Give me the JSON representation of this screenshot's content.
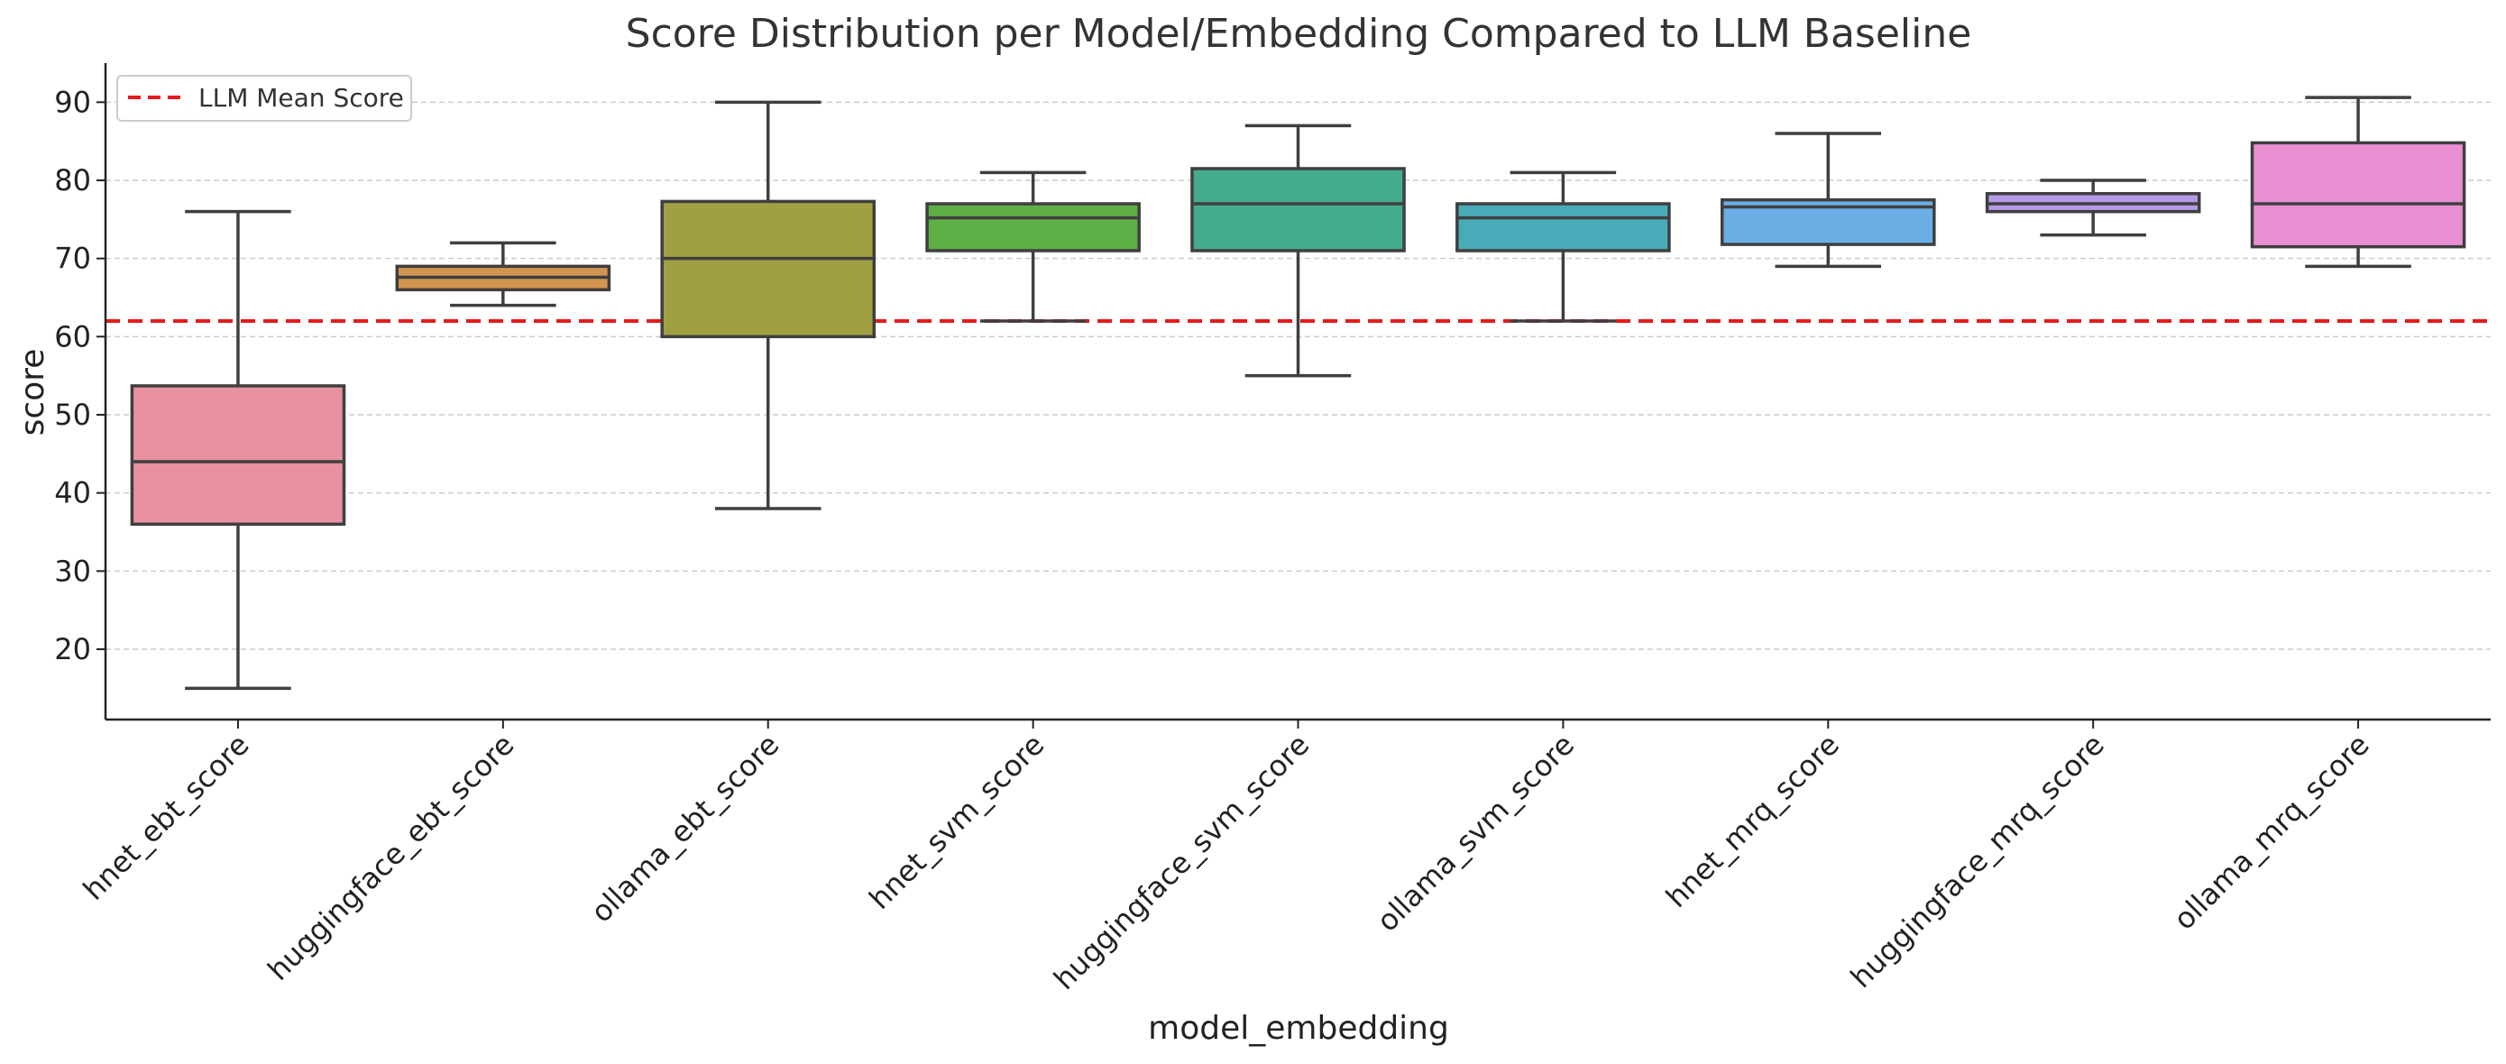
{
  "chart_data": {
    "type": "box",
    "title": "Score Distribution per Model/Embedding Compared to LLM Baseline",
    "xlabel": "model_embedding",
    "ylabel": "score",
    "ylim": [
      11,
      95
    ],
    "yticks": [
      20,
      30,
      40,
      50,
      60,
      70,
      80,
      90
    ],
    "grid": true,
    "legend": {
      "position": "top-left",
      "entries": [
        "LLM Mean Score"
      ]
    },
    "baseline": {
      "name": "LLM Mean Score",
      "value": 62,
      "color": "#e41a1c"
    },
    "categories": [
      "hnet_ebt_score",
      "huggingface_ebt_score",
      "ollama_ebt_score",
      "hnet_svm_score",
      "huggingface_svm_score",
      "ollama_svm_score",
      "hnet_mrq_score",
      "huggingface_mrq_score",
      "ollama_mrq_score"
    ],
    "boxes": [
      {
        "name": "hnet_ebt_score",
        "min": 15,
        "q1": 36,
        "median": 44,
        "q3": 53.7,
        "max": 76,
        "color": "#e8919f"
      },
      {
        "name": "huggingface_ebt_score",
        "min": 64,
        "q1": 66,
        "median": 67.6,
        "q3": 69,
        "max": 72,
        "color": "#d1954f"
      },
      {
        "name": "ollama_ebt_score",
        "min": 38,
        "q1": 60,
        "median": 70,
        "q3": 77.3,
        "max": 90,
        "color": "#a0a043"
      },
      {
        "name": "hnet_svm_score",
        "min": 62,
        "q1": 71,
        "median": 75.2,
        "q3": 77,
        "max": 81,
        "color": "#5eaf45"
      },
      {
        "name": "huggingface_svm_score",
        "min": 55,
        "q1": 71,
        "median": 77,
        "q3": 81.5,
        "max": 87,
        "color": "#45ab8e"
      },
      {
        "name": "ollama_svm_score",
        "min": 62,
        "q1": 71,
        "median": 75.2,
        "q3": 77,
        "max": 81,
        "color": "#4aabb8"
      },
      {
        "name": "hnet_mrq_score",
        "min": 69,
        "q1": 71.8,
        "median": 76.6,
        "q3": 77.5,
        "max": 86,
        "color": "#6aaee6"
      },
      {
        "name": "huggingface_mrq_score",
        "min": 73,
        "q1": 76,
        "median": 77,
        "q3": 78.3,
        "max": 80,
        "color": "#b699e6"
      },
      {
        "name": "ollama_mrq_score",
        "min": 69,
        "q1": 71.5,
        "median": 77,
        "q3": 84.8,
        "max": 90.6,
        "color": "#ea8ed2"
      }
    ]
  }
}
